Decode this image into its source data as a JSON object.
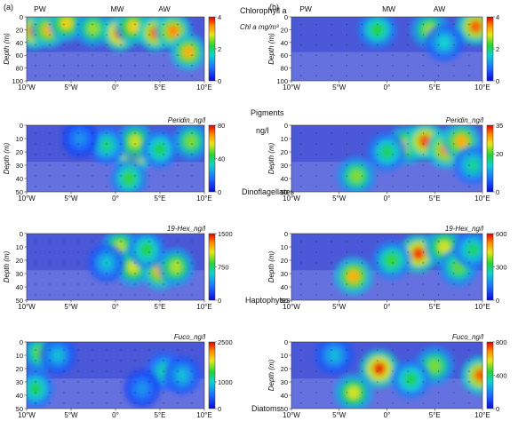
{
  "figure": {
    "panel_a": "(a)",
    "panel_b": "(b)",
    "centre_labels": [
      "Chlorophyll a",
      "Pigments",
      "ng/l",
      "Dinoflagellates",
      "Haptophytes",
      "Diatoms"
    ],
    "water_masses": [
      "PW",
      "MW",
      "AW"
    ]
  },
  "chart_data": [
    {
      "type": "heatmap",
      "id": "a1",
      "column": "a",
      "series": "Chl a mg/m³",
      "xlabel": "",
      "ylabel": "Depth (m)",
      "xlim": [
        -10,
        10
      ],
      "ylim": [
        100,
        0
      ],
      "x_ticks": [
        "10°W",
        "5°W",
        "0°",
        "5°E",
        "10°E"
      ],
      "y_ticks": [
        0,
        20,
        40,
        60,
        80,
        100
      ],
      "colorbar": [
        0,
        2,
        4
      ],
      "top_labels": [
        "PW",
        "MW",
        "AW"
      ],
      "hotspots": [
        {
          "x": -9.2,
          "y": 22,
          "v": 3.6
        },
        {
          "x": -7.5,
          "y": 20,
          "v": 3.2
        },
        {
          "x": -5.5,
          "y": 10,
          "v": 3.0
        },
        {
          "x": -2.5,
          "y": 18,
          "v": 2.6
        },
        {
          "x": 0.5,
          "y": 25,
          "v": 3.8
        },
        {
          "x": 2.0,
          "y": 15,
          "v": 3.0
        },
        {
          "x": 4.5,
          "y": 25,
          "v": 3.6
        },
        {
          "x": 6.5,
          "y": 22,
          "v": 3.4
        },
        {
          "x": 8.2,
          "y": 55,
          "v": 3.2
        }
      ]
    },
    {
      "type": "heatmap",
      "id": "b1",
      "column": "b",
      "series": "",
      "xlabel": "",
      "ylabel": "Depth (m)",
      "xlim": [
        -10,
        10
      ],
      "ylim": [
        100,
        0
      ],
      "x_ticks": [
        "10°W",
        "5°W",
        "0°",
        "5°E",
        "10°E"
      ],
      "y_ticks": [
        0,
        20,
        40,
        60,
        80,
        100
      ],
      "colorbar": [
        0,
        2,
        4
      ],
      "top_labels": [
        "PW",
        "MW",
        "AW"
      ],
      "hotspots": [
        {
          "x": -1.0,
          "y": 20,
          "v": 2.2
        },
        {
          "x": 4.5,
          "y": 20,
          "v": 2.6
        },
        {
          "x": 9.3,
          "y": 15,
          "v": 3.6
        },
        {
          "x": 6.0,
          "y": 40,
          "v": 1.6
        }
      ]
    },
    {
      "type": "heatmap",
      "id": "a2",
      "column": "a",
      "series": "Peridin_ng/l",
      "xlabel": "",
      "ylabel": "Depth (m)",
      "xlim": [
        -10,
        10
      ],
      "ylim": [
        50,
        0
      ],
      "x_ticks": [
        "10°W",
        "5°W",
        "0°",
        "5°E",
        "10°E"
      ],
      "y_ticks": [
        0,
        10,
        20,
        30,
        40,
        50
      ],
      "colorbar": [
        0,
        40,
        80
      ],
      "hotspots": [
        {
          "x": 2.0,
          "y": 22,
          "v": 72
        },
        {
          "x": 2.2,
          "y": 12,
          "v": 55
        },
        {
          "x": -1.0,
          "y": 15,
          "v": 38
        },
        {
          "x": 1.5,
          "y": 40,
          "v": 45
        },
        {
          "x": 5.0,
          "y": 18,
          "v": 42
        },
        {
          "x": 8.5,
          "y": 12,
          "v": 50
        },
        {
          "x": -4.0,
          "y": 10,
          "v": 22
        }
      ]
    },
    {
      "type": "heatmap",
      "id": "b2",
      "column": "b",
      "series": "Peridin_ng/l",
      "xlabel": "",
      "ylabel": "Depth (m)",
      "xlim": [
        -10,
        10
      ],
      "ylim": [
        50,
        0
      ],
      "x_ticks": [
        "10°W",
        "5°W",
        "0°",
        "5°E",
        "10°E"
      ],
      "y_ticks": [
        0,
        10,
        20,
        30,
        40,
        50
      ],
      "colorbar": [
        0,
        20,
        35
      ],
      "hotspots": [
        {
          "x": 2.0,
          "y": 15,
          "v": 26
        },
        {
          "x": 4.0,
          "y": 12,
          "v": 32
        },
        {
          "x": 6.2,
          "y": 18,
          "v": 30
        },
        {
          "x": 7.8,
          "y": 12,
          "v": 28
        },
        {
          "x": -3.2,
          "y": 38,
          "v": 22
        },
        {
          "x": 0.0,
          "y": 20,
          "v": 18
        },
        {
          "x": 9.0,
          "y": 30,
          "v": 16
        }
      ]
    },
    {
      "type": "heatmap",
      "id": "a3",
      "column": "a",
      "series": "19-Hex_ng/l",
      "xlabel": "",
      "ylabel": "Depth (m)",
      "xlim": [
        -10,
        10
      ],
      "ylim": [
        50,
        0
      ],
      "x_ticks": [
        "10°W",
        "5°W",
        "0°",
        "5°E",
        "10°E"
      ],
      "y_ticks": [
        0,
        10,
        20,
        30,
        40,
        50
      ],
      "colorbar": [
        0,
        750,
        1500
      ],
      "hotspots": [
        {
          "x": 0.5,
          "y": 10,
          "v": 1000
        },
        {
          "x": 2.0,
          "y": 25,
          "v": 1050
        },
        {
          "x": 5.0,
          "y": 28,
          "v": 1200
        },
        {
          "x": 6.8,
          "y": 25,
          "v": 1000
        },
        {
          "x": 3.5,
          "y": 12,
          "v": 820
        },
        {
          "x": -1.0,
          "y": 22,
          "v": 560
        }
      ]
    },
    {
      "type": "heatmap",
      "id": "b3",
      "column": "b",
      "series": "19-Hex_ng/l",
      "xlabel": "",
      "ylabel": "Depth (m)",
      "xlim": [
        -10,
        10
      ],
      "ylim": [
        50,
        0
      ],
      "x_ticks": [
        "10°W",
        "5°W",
        "0°",
        "5°E",
        "10°E"
      ],
      "y_ticks": [
        0,
        10,
        20,
        30,
        40,
        50
      ],
      "colorbar": [
        0,
        300,
        600
      ],
      "hotspots": [
        {
          "x": 3.3,
          "y": 15,
          "v": 560
        },
        {
          "x": -3.5,
          "y": 32,
          "v": 480
        },
        {
          "x": 0.5,
          "y": 20,
          "v": 340
        },
        {
          "x": 6.0,
          "y": 10,
          "v": 420
        },
        {
          "x": 7.5,
          "y": 25,
          "v": 360
        },
        {
          "x": 9.0,
          "y": 12,
          "v": 300
        }
      ]
    },
    {
      "type": "heatmap",
      "id": "a4",
      "column": "a",
      "series": "Fuco_ng/l",
      "xlabel": "",
      "ylabel": "",
      "xlim": [
        -10,
        10
      ],
      "ylim": [
        50,
        0
      ],
      "x_ticks": [
        "10°W",
        "5°W",
        "0°",
        "5°E",
        "10°E"
      ],
      "y_ticks": [
        0,
        10,
        20,
        30,
        40,
        50
      ],
      "colorbar": [
        0,
        1000,
        2500
      ],
      "hotspots": [
        {
          "x": -8.5,
          "y": 8,
          "v": 1500
        },
        {
          "x": -9.0,
          "y": 35,
          "v": 1300
        },
        {
          "x": -6.5,
          "y": 10,
          "v": 900
        },
        {
          "x": 5.5,
          "y": 22,
          "v": 1100
        },
        {
          "x": 7.5,
          "y": 25,
          "v": 900
        },
        {
          "x": 3.0,
          "y": 35,
          "v": 700
        }
      ]
    },
    {
      "type": "heatmap",
      "id": "b4",
      "column": "b",
      "series": "Fuco_ng/l",
      "xlabel": "",
      "ylabel": "Depth (m)",
      "xlim": [
        -10,
        10
      ],
      "ylim": [
        50,
        0
      ],
      "x_ticks": [
        "10°W",
        "5°W",
        "0°",
        "5°E",
        "10°E"
      ],
      "y_ticks": [
        0,
        10,
        20,
        30,
        40,
        50
      ],
      "colorbar": [
        0,
        400,
        800
      ],
      "hotspots": [
        {
          "x": -0.8,
          "y": 20,
          "v": 760
        },
        {
          "x": 9.8,
          "y": 25,
          "v": 720
        },
        {
          "x": -3.5,
          "y": 38,
          "v": 560
        },
        {
          "x": 5.0,
          "y": 18,
          "v": 500
        },
        {
          "x": 2.5,
          "y": 28,
          "v": 420
        },
        {
          "x": -5.5,
          "y": 10,
          "v": 280
        }
      ]
    }
  ]
}
